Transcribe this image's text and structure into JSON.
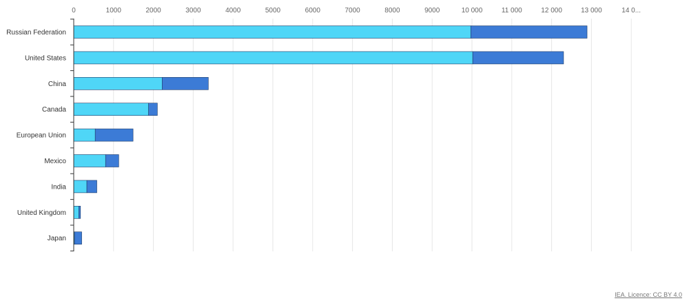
{
  "colors": {
    "series_a": "#4fd6f7",
    "series_b": "#3c7bd6",
    "grid": "#e6e6e6",
    "axis": "#333333"
  },
  "chart_data": {
    "type": "bar",
    "orientation": "horizontal",
    "stacked": true,
    "categories": [
      "Russian Federation",
      "United States",
      "China",
      "Canada",
      "European Union",
      "Mexico",
      "India",
      "United Kingdom",
      "Japan"
    ],
    "series": [
      {
        "values": [
          9970,
          10020,
          2220,
          1880,
          540,
          800,
          330,
          130,
          20
        ]
      },
      {
        "values": [
          2920,
          2280,
          1160,
          220,
          950,
          330,
          250,
          40,
          180
        ]
      }
    ],
    "xlim": [
      0,
      14000
    ],
    "xticks": [
      0,
      1000,
      2000,
      3000,
      4000,
      5000,
      6000,
      7000,
      8000,
      9000,
      10000,
      11000,
      12000,
      13000,
      14000
    ],
    "xtick_labels": [
      "0",
      "1000",
      "2000",
      "3000",
      "4000",
      "5000",
      "6000",
      "7000",
      "8000",
      "9000",
      "10 000",
      "11 000",
      "12 000",
      "13 000",
      "14 0..."
    ],
    "axis_position": "top",
    "grid": true
  },
  "credit": "IEA. Licence: CC BY 4.0"
}
